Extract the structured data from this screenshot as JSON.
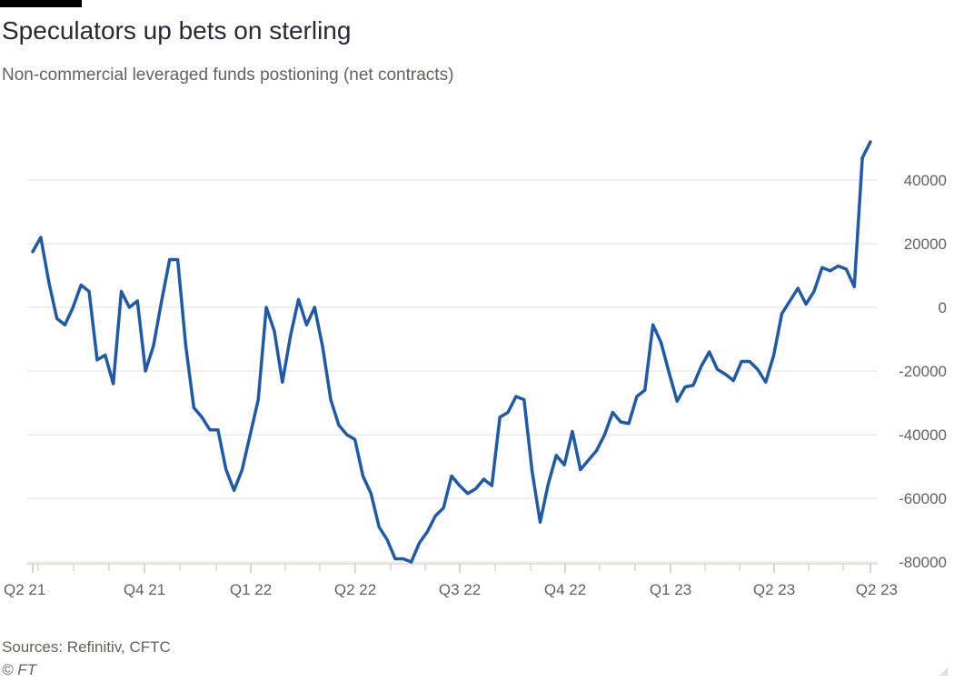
{
  "header": {
    "title": "Speculators up bets on sterling",
    "subtitle": "Non-commercial leveraged funds postioning (net contracts)"
  },
  "footer": {
    "source": "Sources: Refinitiv, CFTC",
    "credit": "© FT"
  },
  "colors": {
    "line": "#1f5aa6",
    "grid": "#ebe6e1",
    "axis_text": "#66605c",
    "tick": "#ccc1b7"
  },
  "chart_data": {
    "type": "line",
    "title": "Speculators up bets on sterling",
    "subtitle": "Non-commercial leveraged funds postioning (net contracts)",
    "xlabel": "",
    "ylabel": "",
    "ylim": [
      -80000,
      50000
    ],
    "y_ticks": [
      40000,
      20000,
      0,
      -20000,
      -40000,
      -60000,
      -80000
    ],
    "y_tick_labels": [
      "40000",
      "20000",
      "0",
      "-20000",
      "-40000",
      "-60000",
      "-80000"
    ],
    "x_tick_labels": [
      "Q2 21",
      "Q4 21",
      "Q1 22",
      "Q2 22",
      "Q3 22",
      "Q4 22",
      "Q1 23",
      "Q2 23",
      "Q2 23"
    ],
    "y_axis_position": "right",
    "grid": true,
    "legend": "none",
    "series": [
      {
        "values": [
          17500,
          22000,
          8000,
          -3500,
          -5500,
          0,
          7000,
          5000,
          -16500,
          -15000,
          -24000,
          5000,
          0,
          2000,
          -20000,
          -12000,
          2000,
          15000,
          15000,
          -12000,
          -31500,
          -34500,
          -38500,
          -38500,
          -51000,
          -57500,
          -51000,
          -40000,
          -29000,
          0,
          -7500,
          -23500,
          -9000,
          2500,
          -5500,
          0,
          -12500,
          -29000,
          -37000,
          -40000,
          -41500,
          -53000,
          -58500,
          -69000,
          -73000,
          -79000,
          -79000,
          -80000,
          -74000,
          -70500,
          -65500,
          -63000,
          -53000,
          -56000,
          -58500,
          -57000,
          -54000,
          -56000,
          -34500,
          -33000,
          -28000,
          -29000,
          -51500,
          -67500,
          -55500,
          -46500,
          -49500,
          -39000,
          -51000,
          -48000,
          -45000,
          -40000,
          -33000,
          -36000,
          -36500,
          -28000,
          -26000,
          -5500,
          -11000,
          -20500,
          -29500,
          -25000,
          -24500,
          -18500,
          -14000,
          -19500,
          -21000,
          -23000,
          -17000,
          -17000,
          -19500,
          -23500,
          -15000,
          -2000,
          2000,
          6000,
          1000,
          5000,
          12500,
          11500,
          13000,
          12000,
          6500,
          47000,
          52000
        ]
      }
    ]
  }
}
